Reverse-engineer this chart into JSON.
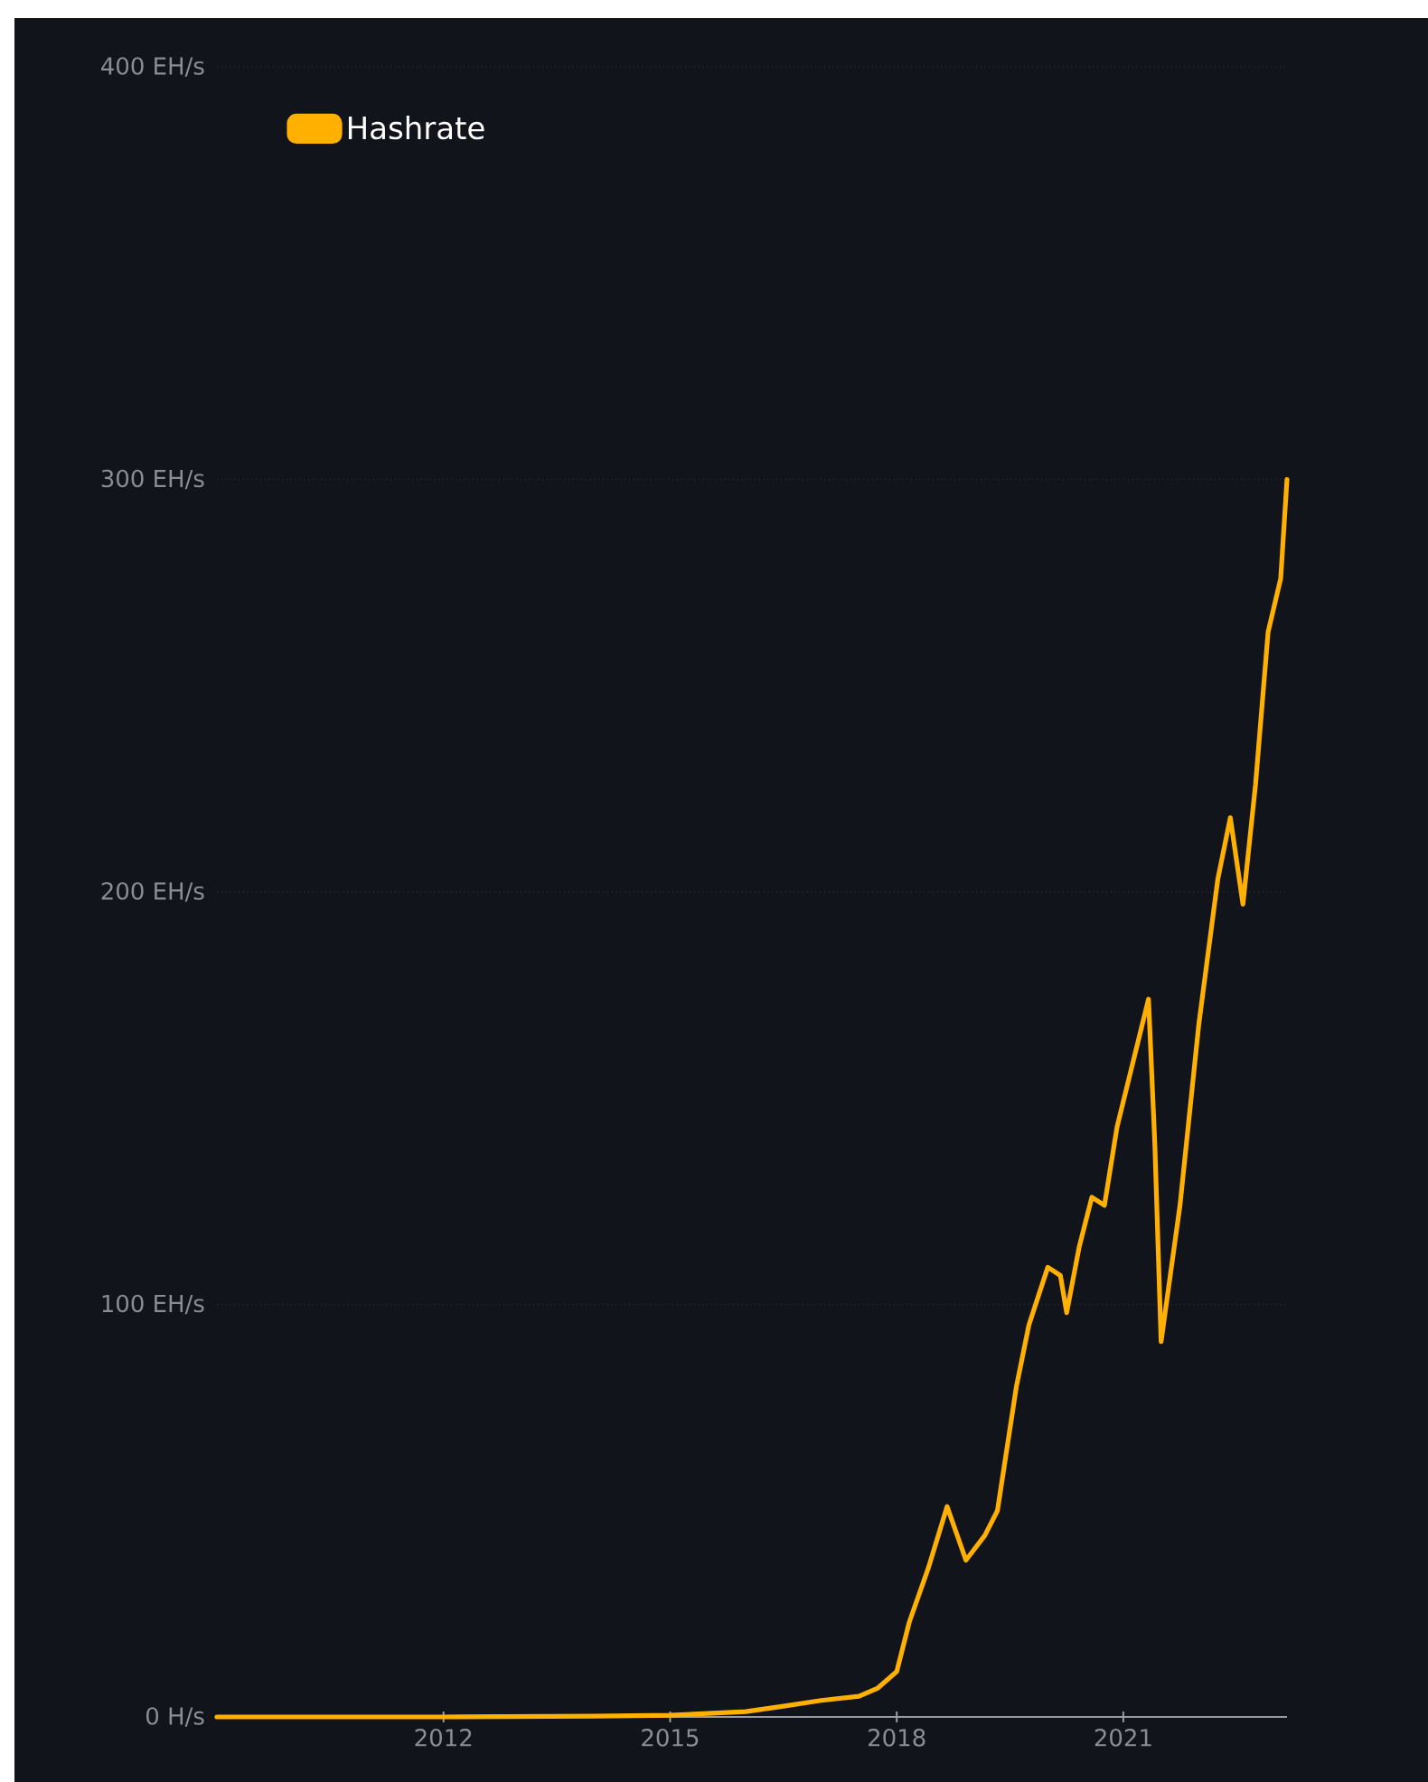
{
  "chart_data": {
    "type": "line",
    "x": [
      "2009-01",
      "2012-01",
      "2014-01",
      "2015-01",
      "2016-01",
      "2016-07",
      "2017-01",
      "2017-07",
      "2017-10",
      "2018-01",
      "2018-03",
      "2018-06",
      "2018-09",
      "2018-12",
      "2019-03",
      "2019-05",
      "2019-08",
      "2019-10",
      "2020-01",
      "2020-03",
      "2020-04",
      "2020-06",
      "2020-08",
      "2020-10",
      "2020-12",
      "2021-05",
      "2021-06",
      "2021-07",
      "2021-10",
      "2022-01",
      "2022-04",
      "2022-06",
      "2022-08",
      "2022-10",
      "2022-12",
      "2023-02",
      "2023-03"
    ],
    "series": [
      {
        "name": "Hashrate",
        "color": "#ffb000",
        "values": [
          0,
          0,
          0.2,
          0.4,
          1.3,
          2.6,
          4,
          5,
          7,
          11,
          23,
          36,
          51,
          38,
          44,
          50,
          80,
          95,
          109,
          107,
          98,
          114,
          126,
          124,
          143,
          174,
          139,
          91,
          124,
          168,
          203,
          218,
          197,
          226,
          263,
          276,
          300
        ]
      }
    ],
    "xlim": [
      "2009-01",
      "2023-03"
    ],
    "xticks": [
      {
        "value": "2012-01",
        "label": "2012"
      },
      {
        "value": "2015-01",
        "label": "2015"
      },
      {
        "value": "2018-01",
        "label": "2018"
      },
      {
        "value": "2021-01",
        "label": "2021"
      }
    ],
    "ylim": [
      0,
      400
    ],
    "yticks": [
      {
        "value": 0,
        "label": "0 H/s"
      },
      {
        "value": 100,
        "label": "100 EH/s"
      },
      {
        "value": 200,
        "label": "200 EH/s"
      },
      {
        "value": 300,
        "label": "300 EH/s"
      },
      {
        "value": 400,
        "label": "400 EH/s"
      }
    ],
    "grid": "y",
    "legend": "top left",
    "marker": "none",
    "line_style": "solid"
  }
}
